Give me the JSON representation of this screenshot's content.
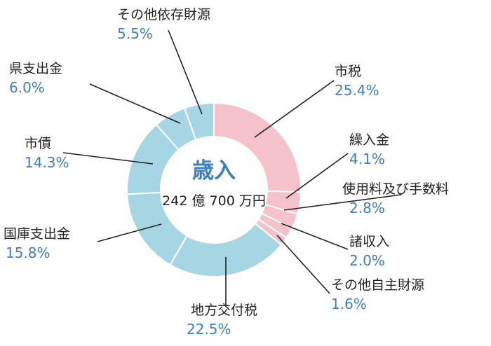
{
  "chart_data": {
    "type": "donut",
    "center_title": "歳入",
    "center_total": "242 億 700 万円",
    "colors": {
      "own_revenue": "#f5c2cb",
      "dependent_revenue": "#a6d6e3",
      "separator": "#ffffff",
      "leader": "#222222",
      "percent_text": "#3d7fc0"
    },
    "slices": [
      {
        "name": "市税",
        "value": 25.4,
        "pct_label": "25.4%",
        "group": "own_revenue"
      },
      {
        "name": "繰入金",
        "value": 4.1,
        "pct_label": "4.1%",
        "group": "own_revenue"
      },
      {
        "name": "使用料及び手数料",
        "value": 2.8,
        "pct_label": "2.8%",
        "group": "own_revenue"
      },
      {
        "name": "諸収入",
        "value": 2.0,
        "pct_label": "2.0%",
        "group": "own_revenue"
      },
      {
        "name": "その他自主財源",
        "value": 1.6,
        "pct_label": "1.6%",
        "group": "own_revenue"
      },
      {
        "name": "地方交付税",
        "value": 22.5,
        "pct_label": "22.5%",
        "group": "dependent_revenue"
      },
      {
        "name": "国庫支出金",
        "value": 15.8,
        "pct_label": "15.8%",
        "group": "dependent_revenue"
      },
      {
        "name": "市債",
        "value": 14.3,
        "pct_label": "14.3%",
        "group": "dependent_revenue"
      },
      {
        "name": "県支出金",
        "value": 6.0,
        "pct_label": "6.0%",
        "group": "dependent_revenue"
      },
      {
        "name": "その他依存財源",
        "value": 5.5,
        "pct_label": "5.5%",
        "group": "dependent_revenue"
      }
    ]
  }
}
